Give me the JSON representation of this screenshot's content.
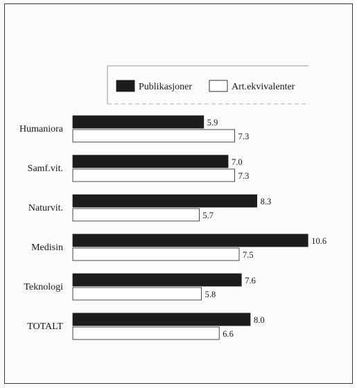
{
  "chart_data": {
    "type": "bar",
    "orientation": "horizontal",
    "categories": [
      "Humaniora",
      "Samf.vit.",
      "Naturvit.",
      "Medisin",
      "Teknologi",
      "TOTALT"
    ],
    "series": [
      {
        "name": "Publikasjoner",
        "values": [
          5.9,
          7.0,
          8.3,
          10.6,
          7.6,
          8.0
        ],
        "color": "#1c1c1c"
      },
      {
        "name": "Art.ekvivalenter",
        "values": [
          7.3,
          7.3,
          5.7,
          7.5,
          5.8,
          6.6
        ],
        "color": "#ffffff"
      }
    ],
    "value_labels": {
      "Publikasjoner": [
        "5.9",
        "7.0",
        "8.3",
        "10.6",
        "7.6",
        "8.0"
      ],
      "Art.ekvivalenter": [
        "7.3",
        "7.3",
        "5.7",
        "7.5",
        "5.8",
        "6.6"
      ]
    },
    "title": "",
    "xlabel": "",
    "ylabel": "",
    "xlim": [
      0,
      11
    ],
    "grid": false,
    "legend_position": "top"
  }
}
